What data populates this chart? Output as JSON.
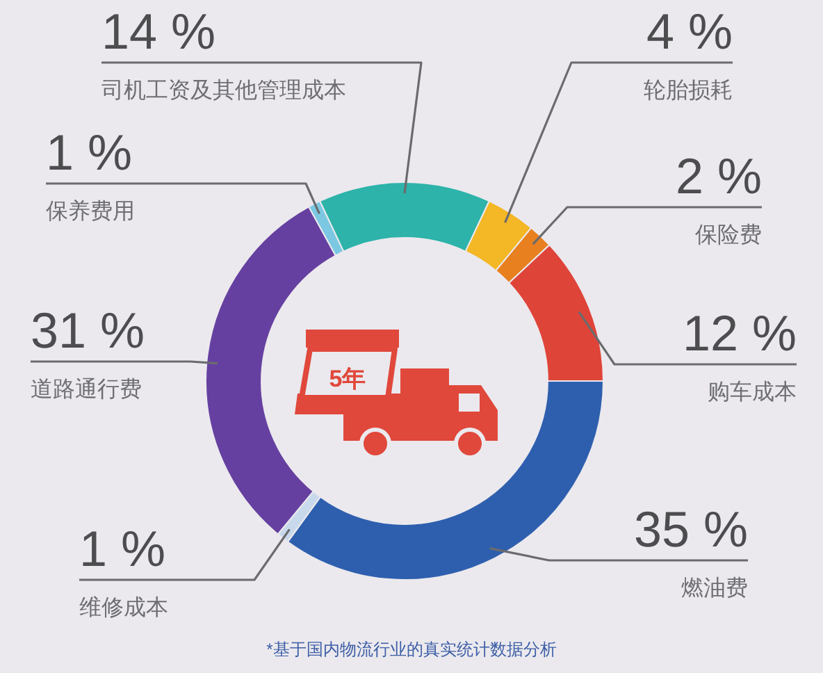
{
  "chart_data": {
    "type": "donut",
    "categories": [
      "燃油费",
      "维修成本",
      "道路通行费",
      "保养费用",
      "司机工资及其他管理成本",
      "轮胎损耗",
      "保险费",
      "购车成本"
    ],
    "values": [
      35,
      1,
      31,
      1,
      14,
      4,
      2,
      12
    ],
    "colors": [
      "#2e5fae",
      "#c9d9ec",
      "#6640a0",
      "#7cc8e2",
      "#2db3a9",
      "#f4b725",
      "#e8801f",
      "#df4439"
    ],
    "value_labels": [
      "35 %",
      "1 %",
      "31 %",
      "1 %",
      "14 %",
      "4 %",
      "2 %",
      "12 %"
    ],
    "annotations": [
      "5年",
      "*基于国内物流行业的真实统计数据分析"
    ]
  }
}
